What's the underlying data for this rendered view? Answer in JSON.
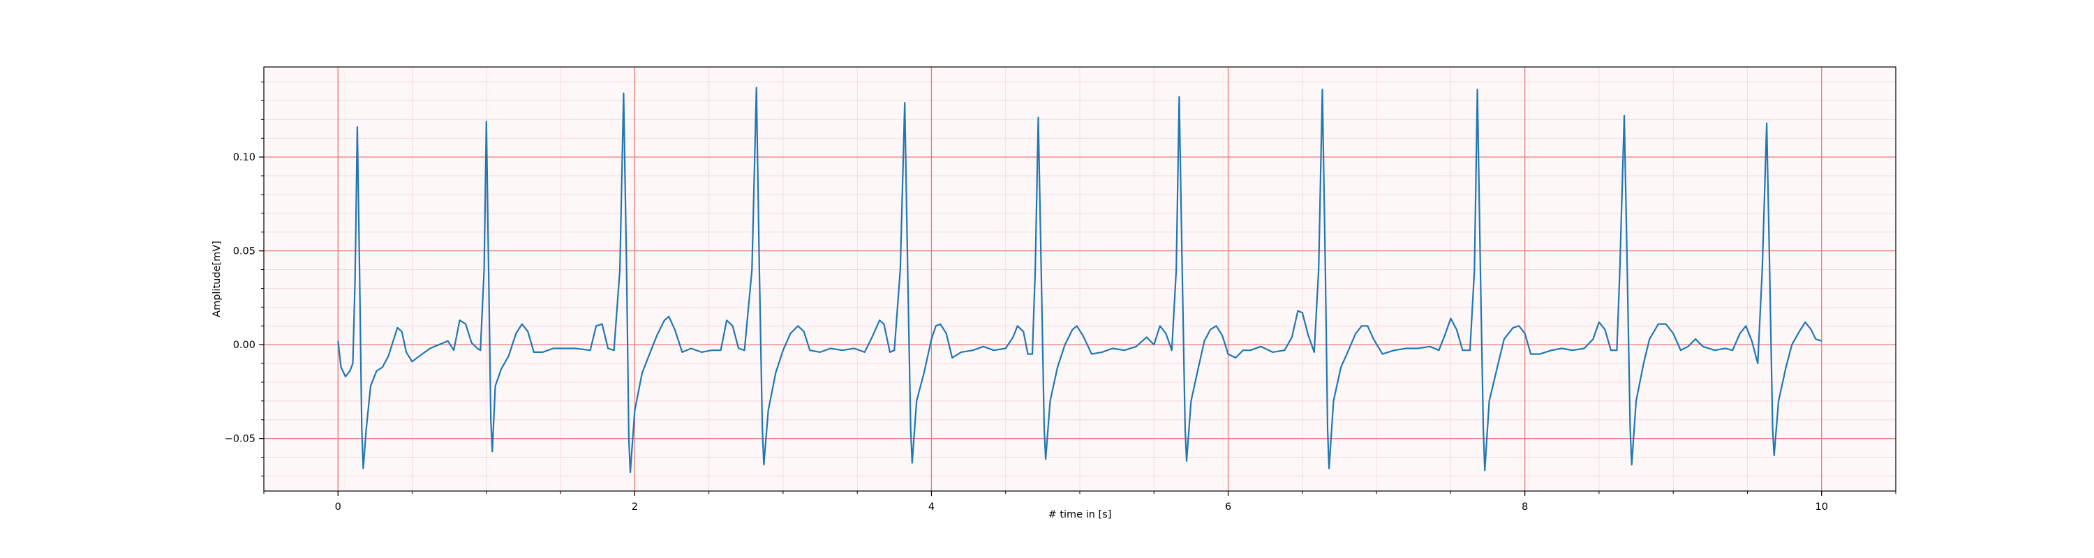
{
  "chart_data": {
    "type": "line",
    "title": "",
    "xlabel": "# time in [s]",
    "ylabel": "Amplitude[mV]",
    "xlim": [
      -0.5,
      10.5
    ],
    "ylim": [
      -0.078,
      0.148
    ],
    "x_major_ticks": [
      0,
      2,
      4,
      6,
      8,
      10
    ],
    "x_tick_labels": [
      "0",
      "2",
      "4",
      "6",
      "8",
      "10"
    ],
    "x_minor_step": 0.5,
    "y_major_ticks": [
      -0.05,
      0.0,
      0.05,
      0.1
    ],
    "y_tick_labels": [
      "−0.05",
      "0.00",
      "0.05",
      "0.10"
    ],
    "y_minor_step": 0.01,
    "grid": true,
    "colors": {
      "line": "#1f77b4",
      "major_grid": "#e87a7a",
      "minor_grid": "#f7d9dd",
      "axes_bg": "#fdf7f8"
    },
    "series": [
      {
        "values": [
          [
            0.0,
            0.002
          ],
          [
            0.02,
            -0.012
          ],
          [
            0.05,
            -0.017
          ],
          [
            0.08,
            -0.014
          ],
          [
            0.1,
            -0.01
          ],
          [
            0.115,
            0.035
          ],
          [
            0.13,
            0.116
          ],
          [
            0.145,
            0.04
          ],
          [
            0.16,
            -0.045
          ],
          [
            0.17,
            -0.066
          ],
          [
            0.19,
            -0.045
          ],
          [
            0.22,
            -0.022
          ],
          [
            0.26,
            -0.014
          ],
          [
            0.3,
            -0.012
          ],
          [
            0.34,
            -0.006
          ],
          [
            0.38,
            0.004
          ],
          [
            0.4,
            0.009
          ],
          [
            0.43,
            0.007
          ],
          [
            0.46,
            -0.004
          ],
          [
            0.5,
            -0.009
          ],
          [
            0.55,
            -0.006
          ],
          [
            0.62,
            -0.002
          ],
          [
            0.68,
            0.0
          ],
          [
            0.74,
            0.002
          ],
          [
            0.78,
            -0.003
          ],
          [
            0.82,
            0.013
          ],
          [
            0.86,
            0.011
          ],
          [
            0.9,
            0.001
          ],
          [
            0.94,
            -0.002
          ],
          [
            0.96,
            -0.003
          ],
          [
            0.985,
            0.04
          ],
          [
            1.0,
            0.119
          ],
          [
            1.015,
            0.04
          ],
          [
            1.03,
            -0.04
          ],
          [
            1.04,
            -0.057
          ],
          [
            1.06,
            -0.022
          ],
          [
            1.1,
            -0.013
          ],
          [
            1.15,
            -0.006
          ],
          [
            1.2,
            0.006
          ],
          [
            1.24,
            0.011
          ],
          [
            1.28,
            0.007
          ],
          [
            1.32,
            -0.004
          ],
          [
            1.38,
            -0.004
          ],
          [
            1.45,
            -0.002
          ],
          [
            1.52,
            -0.002
          ],
          [
            1.6,
            -0.002
          ],
          [
            1.7,
            -0.003
          ],
          [
            1.74,
            0.01
          ],
          [
            1.78,
            0.011
          ],
          [
            1.82,
            -0.002
          ],
          [
            1.86,
            -0.003
          ],
          [
            1.9,
            0.04
          ],
          [
            1.925,
            0.134
          ],
          [
            1.945,
            0.04
          ],
          [
            1.96,
            -0.05
          ],
          [
            1.97,
            -0.068
          ],
          [
            2.0,
            -0.035
          ],
          [
            2.05,
            -0.015
          ],
          [
            2.1,
            -0.005
          ],
          [
            2.15,
            0.005
          ],
          [
            2.2,
            0.013
          ],
          [
            2.23,
            0.015
          ],
          [
            2.27,
            0.008
          ],
          [
            2.32,
            -0.004
          ],
          [
            2.38,
            -0.002
          ],
          [
            2.45,
            -0.004
          ],
          [
            2.52,
            -0.003
          ],
          [
            2.58,
            -0.003
          ],
          [
            2.62,
            0.013
          ],
          [
            2.66,
            0.01
          ],
          [
            2.7,
            -0.002
          ],
          [
            2.74,
            -0.003
          ],
          [
            2.79,
            0.04
          ],
          [
            2.82,
            0.137
          ],
          [
            2.84,
            0.04
          ],
          [
            2.86,
            -0.045
          ],
          [
            2.87,
            -0.064
          ],
          [
            2.9,
            -0.035
          ],
          [
            2.95,
            -0.015
          ],
          [
            3.0,
            -0.003
          ],
          [
            3.05,
            0.006
          ],
          [
            3.1,
            0.01
          ],
          [
            3.14,
            0.007
          ],
          [
            3.18,
            -0.003
          ],
          [
            3.25,
            -0.004
          ],
          [
            3.32,
            -0.002
          ],
          [
            3.4,
            -0.003
          ],
          [
            3.48,
            -0.002
          ],
          [
            3.55,
            -0.004
          ],
          [
            3.6,
            0.004
          ],
          [
            3.65,
            0.013
          ],
          [
            3.68,
            0.011
          ],
          [
            3.72,
            -0.004
          ],
          [
            3.75,
            -0.003
          ],
          [
            3.79,
            0.04
          ],
          [
            3.82,
            0.129
          ],
          [
            3.84,
            0.04
          ],
          [
            3.86,
            -0.045
          ],
          [
            3.87,
            -0.063
          ],
          [
            3.9,
            -0.03
          ],
          [
            3.95,
            -0.015
          ],
          [
            4.0,
            0.003
          ],
          [
            4.03,
            0.01
          ],
          [
            4.06,
            0.011
          ],
          [
            4.1,
            0.006
          ],
          [
            4.14,
            -0.007
          ],
          [
            4.2,
            -0.004
          ],
          [
            4.28,
            -0.003
          ],
          [
            4.35,
            -0.001
          ],
          [
            4.42,
            -0.003
          ],
          [
            4.5,
            -0.002
          ],
          [
            4.55,
            0.004
          ],
          [
            4.58,
            0.01
          ],
          [
            4.62,
            0.007
          ],
          [
            4.65,
            -0.005
          ],
          [
            4.68,
            -0.005
          ],
          [
            4.7,
            0.04
          ],
          [
            4.72,
            0.121
          ],
          [
            4.74,
            0.04
          ],
          [
            4.76,
            -0.045
          ],
          [
            4.77,
            -0.061
          ],
          [
            4.8,
            -0.03
          ],
          [
            4.85,
            -0.012
          ],
          [
            4.9,
            0.0
          ],
          [
            4.95,
            0.008
          ],
          [
            4.98,
            0.01
          ],
          [
            5.02,
            0.005
          ],
          [
            5.08,
            -0.005
          ],
          [
            5.15,
            -0.004
          ],
          [
            5.22,
            -0.002
          ],
          [
            5.3,
            -0.003
          ],
          [
            5.38,
            -0.001
          ],
          [
            5.45,
            0.004
          ],
          [
            5.5,
            0.0
          ],
          [
            5.54,
            0.01
          ],
          [
            5.58,
            0.006
          ],
          [
            5.62,
            -0.003
          ],
          [
            5.65,
            0.04
          ],
          [
            5.67,
            0.132
          ],
          [
            5.69,
            0.04
          ],
          [
            5.71,
            -0.045
          ],
          [
            5.72,
            -0.062
          ],
          [
            5.75,
            -0.03
          ],
          [
            5.8,
            -0.012
          ],
          [
            5.84,
            0.002
          ],
          [
            5.88,
            0.008
          ],
          [
            5.92,
            0.01
          ],
          [
            5.96,
            0.005
          ],
          [
            6.0,
            -0.005
          ],
          [
            6.05,
            -0.007
          ],
          [
            6.1,
            -0.003
          ],
          [
            6.15,
            -0.003
          ],
          [
            6.22,
            -0.001
          ],
          [
            6.3,
            -0.004
          ],
          [
            6.38,
            -0.003
          ],
          [
            6.43,
            0.004
          ],
          [
            6.47,
            0.018
          ],
          [
            6.5,
            0.017
          ],
          [
            6.54,
            0.005
          ],
          [
            6.58,
            -0.004
          ],
          [
            6.61,
            0.04
          ],
          [
            6.635,
            0.136
          ],
          [
            6.655,
            0.04
          ],
          [
            6.67,
            -0.045
          ],
          [
            6.68,
            -0.066
          ],
          [
            6.71,
            -0.03
          ],
          [
            6.76,
            -0.012
          ],
          [
            6.8,
            -0.005
          ],
          [
            6.86,
            0.006
          ],
          [
            6.9,
            0.01
          ],
          [
            6.94,
            0.01
          ],
          [
            6.98,
            0.003
          ],
          [
            7.04,
            -0.005
          ],
          [
            7.12,
            -0.003
          ],
          [
            7.2,
            -0.002
          ],
          [
            7.28,
            -0.002
          ],
          [
            7.36,
            -0.001
          ],
          [
            7.42,
            -0.003
          ],
          [
            7.46,
            0.005
          ],
          [
            7.5,
            0.014
          ],
          [
            7.54,
            0.008
          ],
          [
            7.58,
            -0.003
          ],
          [
            7.63,
            -0.003
          ],
          [
            7.66,
            0.04
          ],
          [
            7.68,
            0.136
          ],
          [
            7.7,
            0.04
          ],
          [
            7.72,
            -0.045
          ],
          [
            7.73,
            -0.067
          ],
          [
            7.76,
            -0.03
          ],
          [
            7.82,
            -0.01
          ],
          [
            7.86,
            0.003
          ],
          [
            7.92,
            0.009
          ],
          [
            7.96,
            0.01
          ],
          [
            8.0,
            0.006
          ],
          [
            8.04,
            -0.005
          ],
          [
            8.1,
            -0.005
          ],
          [
            8.18,
            -0.003
          ],
          [
            8.25,
            -0.002
          ],
          [
            8.32,
            -0.003
          ],
          [
            8.4,
            -0.002
          ],
          [
            8.46,
            0.003
          ],
          [
            8.5,
            0.012
          ],
          [
            8.54,
            0.008
          ],
          [
            8.58,
            -0.003
          ],
          [
            8.62,
            -0.003
          ],
          [
            8.64,
            0.04
          ],
          [
            8.67,
            0.122
          ],
          [
            8.69,
            0.04
          ],
          [
            8.71,
            -0.045
          ],
          [
            8.72,
            -0.064
          ],
          [
            8.75,
            -0.03
          ],
          [
            8.8,
            -0.01
          ],
          [
            8.84,
            0.003
          ],
          [
            8.9,
            0.011
          ],
          [
            8.95,
            0.011
          ],
          [
            9.0,
            0.006
          ],
          [
            9.05,
            -0.003
          ],
          [
            9.1,
            -0.001
          ],
          [
            9.15,
            0.003
          ],
          [
            9.2,
            -0.001
          ],
          [
            9.28,
            -0.003
          ],
          [
            9.35,
            -0.002
          ],
          [
            9.4,
            -0.003
          ],
          [
            9.45,
            0.006
          ],
          [
            9.49,
            0.01
          ],
          [
            9.53,
            0.002
          ],
          [
            9.57,
            -0.01
          ],
          [
            9.6,
            0.04
          ],
          [
            9.63,
            0.118
          ],
          [
            9.65,
            0.04
          ],
          [
            9.67,
            -0.045
          ],
          [
            9.68,
            -0.059
          ],
          [
            9.71,
            -0.03
          ],
          [
            9.76,
            -0.012
          ],
          [
            9.8,
            0.0
          ],
          [
            9.85,
            0.007
          ],
          [
            9.89,
            0.012
          ],
          [
            9.93,
            0.008
          ],
          [
            9.96,
            0.003
          ],
          [
            10.0,
            0.002
          ]
        ]
      }
    ]
  }
}
